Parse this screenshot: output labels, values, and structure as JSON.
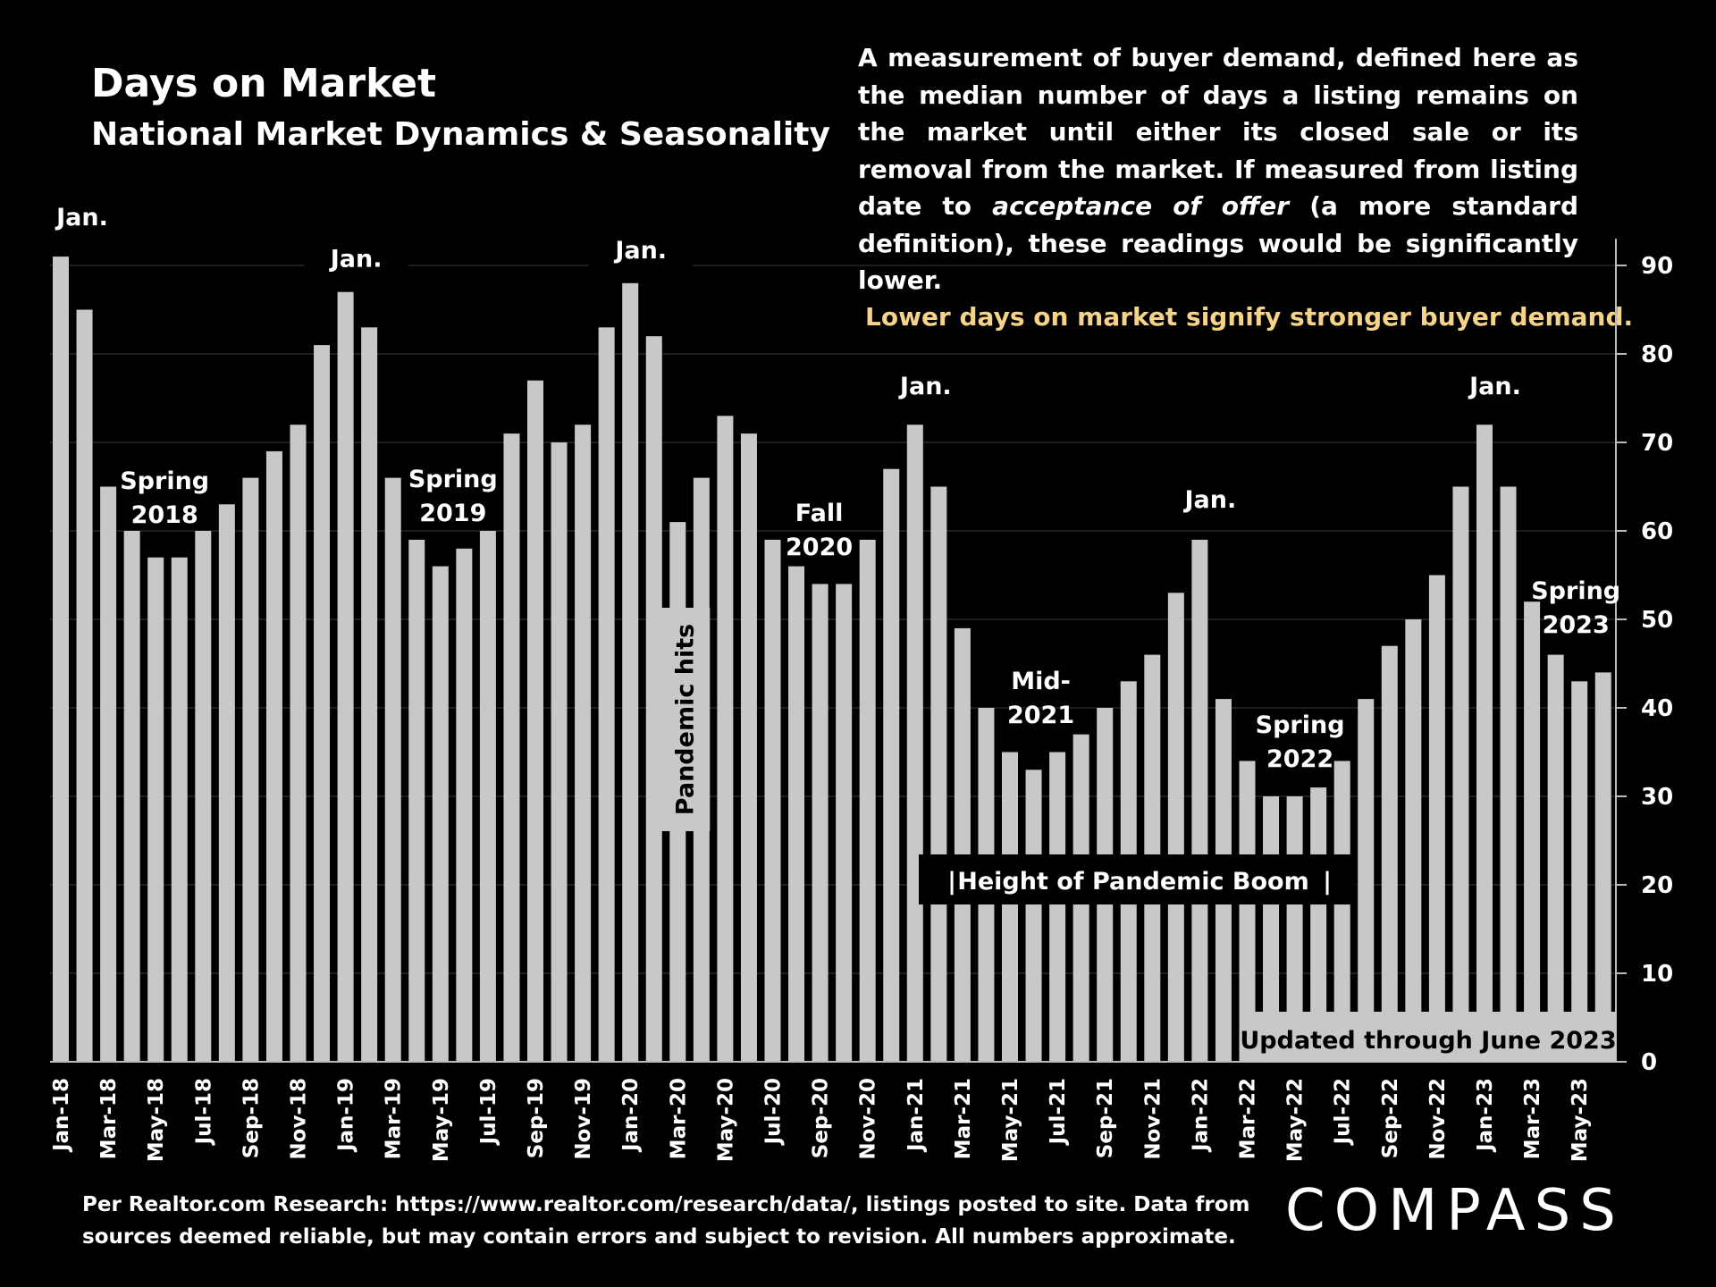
{
  "header": {
    "title": "Days on Market",
    "subtitle": "National Market Dynamics & Seasonality"
  },
  "description": {
    "part1": "A measurement of buyer demand, defined here as the median number of days a listing remains on the market until either its closed sale or its removal from the market. If measured from listing date to ",
    "emphasis": "acceptance of offer",
    "part2": " (a more standard definition), these readings would be significantly lower."
  },
  "callout": "Lower days on market signify stronger buyer demand.",
  "footnote": {
    "line1": "Per Realtor.com Research:  https://www.realtor.com/research/data/, listings posted to site. Data from",
    "line2": "sources deemed reliable, but may contain errors and subject to revision. All numbers approximate."
  },
  "brand": {
    "logo_text": "COMPASS"
  },
  "colors": {
    "bar": "#c8c8c8",
    "background": "#000000",
    "callout": "#f6d38a",
    "grid": "#3a3a3a"
  },
  "chart_data": {
    "type": "bar",
    "title": "Days on Market",
    "ylabel": "",
    "xlabel": "",
    "ylim": [
      0,
      90
    ],
    "yticks": [
      0,
      10,
      20,
      30,
      40,
      50,
      60,
      70,
      80,
      90
    ],
    "grid": true,
    "categories": [
      "Jan-18",
      "Feb-18",
      "Mar-18",
      "Apr-18",
      "May-18",
      "Jun-18",
      "Jul-18",
      "Aug-18",
      "Sep-18",
      "Oct-18",
      "Nov-18",
      "Dec-18",
      "Jan-19",
      "Feb-19",
      "Mar-19",
      "Apr-19",
      "May-19",
      "Jun-19",
      "Jul-19",
      "Aug-19",
      "Sep-19",
      "Oct-19",
      "Nov-19",
      "Dec-19",
      "Jan-20",
      "Feb-20",
      "Mar-20",
      "Apr-20",
      "May-20",
      "Jun-20",
      "Jul-20",
      "Aug-20",
      "Sep-20",
      "Oct-20",
      "Nov-20",
      "Dec-20",
      "Jan-21",
      "Feb-21",
      "Mar-21",
      "Apr-21",
      "May-21",
      "Jun-21",
      "Jul-21",
      "Aug-21",
      "Sep-21",
      "Oct-21",
      "Nov-21",
      "Dec-21",
      "Jan-22",
      "Feb-22",
      "Mar-22",
      "Apr-22",
      "May-22",
      "Jun-22",
      "Jul-22",
      "Aug-22",
      "Sep-22",
      "Oct-22",
      "Nov-22",
      "Dec-22",
      "Jan-23",
      "Feb-23",
      "Mar-23",
      "Apr-23",
      "May-23",
      "Jun-23"
    ],
    "tick_labels": [
      "Jan-18",
      "Mar-18",
      "May-18",
      "Jul-18",
      "Sep-18",
      "Nov-18",
      "Jan-19",
      "Mar-19",
      "May-19",
      "Jul-19",
      "Sep-19",
      "Nov-19",
      "Jan-20",
      "Mar-20",
      "May-20",
      "Jul-20",
      "Sep-20",
      "Nov-20",
      "Jan-21",
      "Mar-21",
      "May-21",
      "Jul-21",
      "Sep-21",
      "Nov-21",
      "Jan-22",
      "Mar-22",
      "May-22",
      "Jul-22",
      "Sep-22",
      "Nov-22",
      "Jan-23",
      "Mar-23",
      "May-23"
    ],
    "values": [
      91,
      85,
      65,
      60,
      57,
      57,
      60,
      63,
      66,
      69,
      72,
      81,
      87,
      83,
      66,
      59,
      56,
      58,
      60,
      71,
      77,
      70,
      72,
      83,
      88,
      82,
      61,
      66,
      73,
      71,
      59,
      56,
      54,
      54,
      59,
      67,
      72,
      65,
      49,
      40,
      35,
      33,
      35,
      37,
      40,
      43,
      46,
      53,
      59,
      41,
      34,
      30,
      30,
      31,
      34,
      41,
      47,
      50,
      55,
      65,
      72,
      65,
      52,
      46,
      43,
      44
    ],
    "annotations": [
      {
        "text": "Jan.",
        "index": 0
      },
      {
        "text": "Jan.",
        "index": 12
      },
      {
        "text": "Jan.",
        "index": 24
      },
      {
        "text": "Jan.",
        "index": 36
      },
      {
        "text": "Jan.",
        "index": 48
      },
      {
        "text": "Jan.",
        "index": 60
      },
      {
        "text": "Spring 2018",
        "index": 4
      },
      {
        "text": "Spring 2019",
        "index": 16
      },
      {
        "text": "Fall 2020",
        "index": 32
      },
      {
        "text": "Mid-2021",
        "index": 41
      },
      {
        "text": "Spring 2022",
        "index": 52
      },
      {
        "text": "Spring 2023",
        "index": 64
      },
      {
        "text": "Pandemic hits",
        "index": 26
      },
      {
        "text": "Height of Pandemic Boom",
        "index_range": [
          36,
          53
        ]
      },
      {
        "text": "Updated through June 2023",
        "index_range": [
          50,
          65
        ]
      }
    ]
  }
}
